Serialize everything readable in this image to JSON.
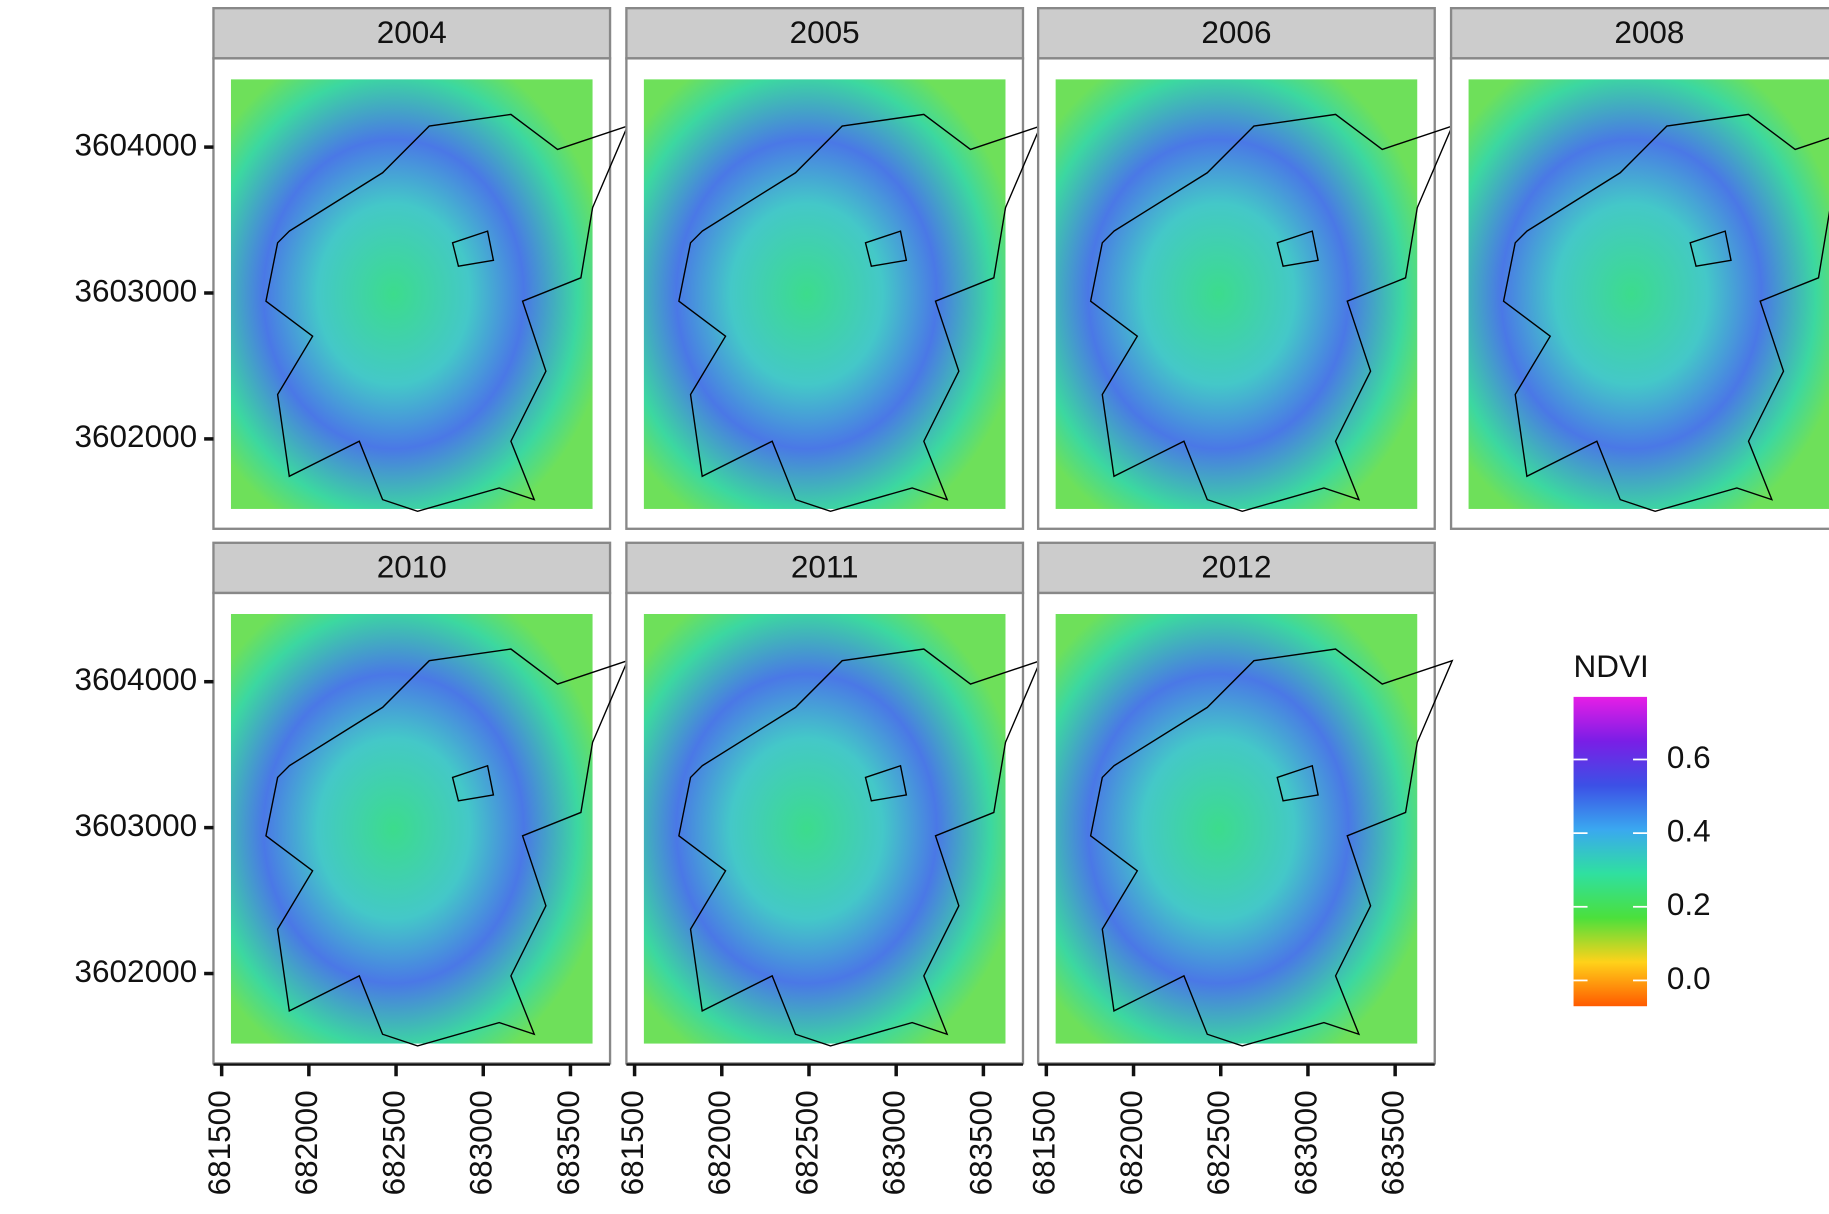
{
  "chart_data": {
    "type": "raster",
    "facets": [
      "2004",
      "2005",
      "2006",
      "2008",
      "2010",
      "2011",
      "2012"
    ],
    "xlim": [
      681453,
      683727
    ],
    "xticks": [
      681500,
      682000,
      682500,
      683000,
      683500
    ],
    "ylim": [
      3601384,
      3604608
    ],
    "yticks": [
      3602000,
      3603000,
      3604000
    ],
    "legend": {
      "title": "NDVI",
      "clim": [
        -0.07,
        0.77
      ],
      "ticks": [
        {
          "value": 0,
          "label": "0.0"
        },
        0.2,
        0.4,
        0.6
      ],
      "colors": [
        "#ff5a00",
        "#ffd21a",
        "#4be03c",
        "#2fe0a0",
        "#3aa8f0",
        "#3c50e6",
        "#7a1ee6",
        "#e61ee6"
      ]
    }
  }
}
